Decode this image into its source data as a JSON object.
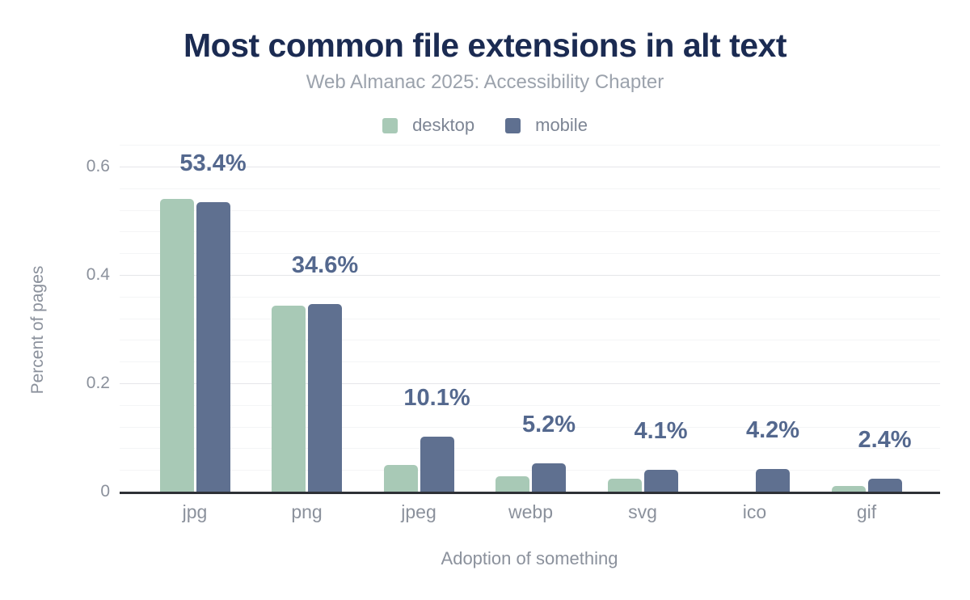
{
  "colors": {
    "title": "#1b2b52",
    "subtitle": "#9ba2ac",
    "legend_text": "#7d8594",
    "axis_text": "#8b919c",
    "data_label": "#54688e",
    "axis_line": "#2e3136",
    "grid_major": "#e5e6e9",
    "grid_minor": "#f4f5f6",
    "desktop": "#a8c9b6",
    "mobile": "#5f7090"
  },
  "chart_data": {
    "type": "bar",
    "title": "Most common file extensions in alt text",
    "subtitle": "Web Almanac 2025: Accessibility Chapter",
    "xlabel": "Adoption of something",
    "ylabel": "Percent of pages",
    "categories": [
      "jpg",
      "png",
      "jpeg",
      "webp",
      "svg",
      "ico",
      "gif"
    ],
    "series": [
      {
        "name": "desktop",
        "color": "#a8c9b6",
        "values": [
          0.54,
          0.344,
          0.049,
          0.029,
          0.024,
          0.0,
          0.01
        ]
      },
      {
        "name": "mobile",
        "color": "#5f7090",
        "values": [
          0.534,
          0.346,
          0.101,
          0.052,
          0.041,
          0.042,
          0.024
        ]
      }
    ],
    "data_labels": [
      "53.4%",
      "34.6%",
      "10.1%",
      "5.2%",
      "4.1%",
      "4.2%",
      "2.4%"
    ],
    "data_label_series": "mobile",
    "y_ticks": [
      0,
      0.2,
      0.4,
      0.6
    ],
    "y_tick_labels": [
      "0",
      "0.2",
      "0.4",
      "0.6"
    ],
    "ylim": [
      0,
      0.6
    ],
    "grid": true,
    "legend_position": "top"
  }
}
